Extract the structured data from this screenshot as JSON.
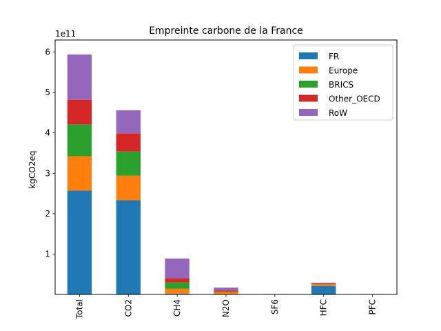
{
  "chart_data": {
    "type": "bar",
    "stacked": true,
    "title": "Empreinte carbone de la France",
    "xlabel": "",
    "ylabel": "kgCO2eq",
    "y_offset_label": "1e11",
    "ylim": [
      0,
      6.3
    ],
    "yticks": [
      "1",
      "2",
      "3",
      "4",
      "5",
      "6"
    ],
    "categories": [
      "Total",
      "CO2",
      "CH4",
      "N2O",
      "SF6",
      "HFC",
      "PFC"
    ],
    "series": [
      {
        "name": "FR",
        "color": "#1f77b4",
        "values": [
          2.57,
          2.33,
          0.02,
          0.01,
          0.002,
          0.21,
          0.002
        ]
      },
      {
        "name": "Europe",
        "color": "#ff7f0e",
        "values": [
          0.85,
          0.61,
          0.12,
          0.05,
          0.005,
          0.04,
          0.005
        ]
      },
      {
        "name": "BRICS",
        "color": "#2ca02c",
        "values": [
          0.79,
          0.6,
          0.16,
          0.01,
          0.001,
          0.01,
          0.001
        ]
      },
      {
        "name": "Other_OECD",
        "color": "#d62728",
        "values": [
          0.61,
          0.45,
          0.1,
          0.03,
          0.001,
          0.02,
          0.001
        ]
      },
      {
        "name": "RoW",
        "color": "#9467bd",
        "values": [
          1.12,
          0.57,
          0.49,
          0.07,
          0.001,
          0.01,
          0.001
        ]
      }
    ],
    "legend_position": "top-right",
    "grid": false
  }
}
